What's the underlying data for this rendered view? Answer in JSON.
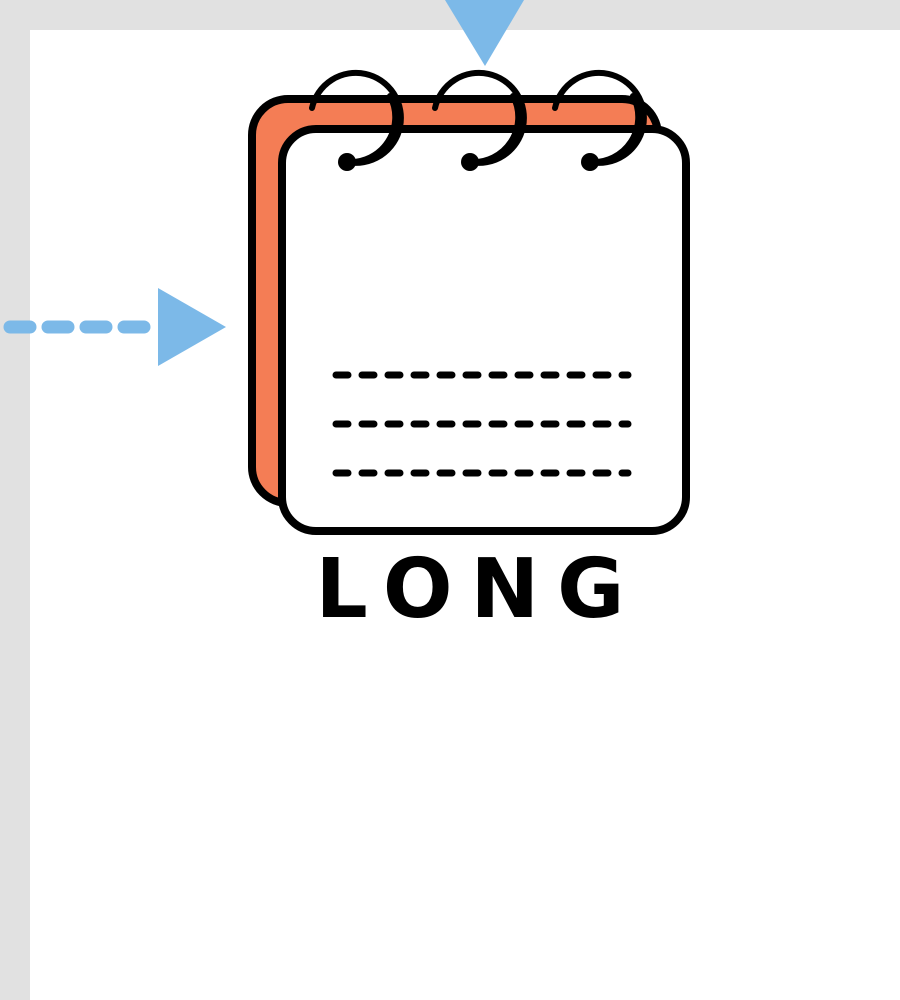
{
  "logo": {
    "text": "LONG",
    "icon": "notepad-icon",
    "text_color": "#000000",
    "back_page_color": "#f47d55",
    "front_page_color": "#ffffff",
    "outline_color": "#000000"
  },
  "canvas": {
    "background_color": "#e1e1e1",
    "artboard_color": "#ffffff"
  },
  "markers": {
    "color": "#7cb9e8",
    "top_marker_icon": "triangle-down-icon",
    "left_marker_icon": "dashed-arrow-right-icon"
  }
}
